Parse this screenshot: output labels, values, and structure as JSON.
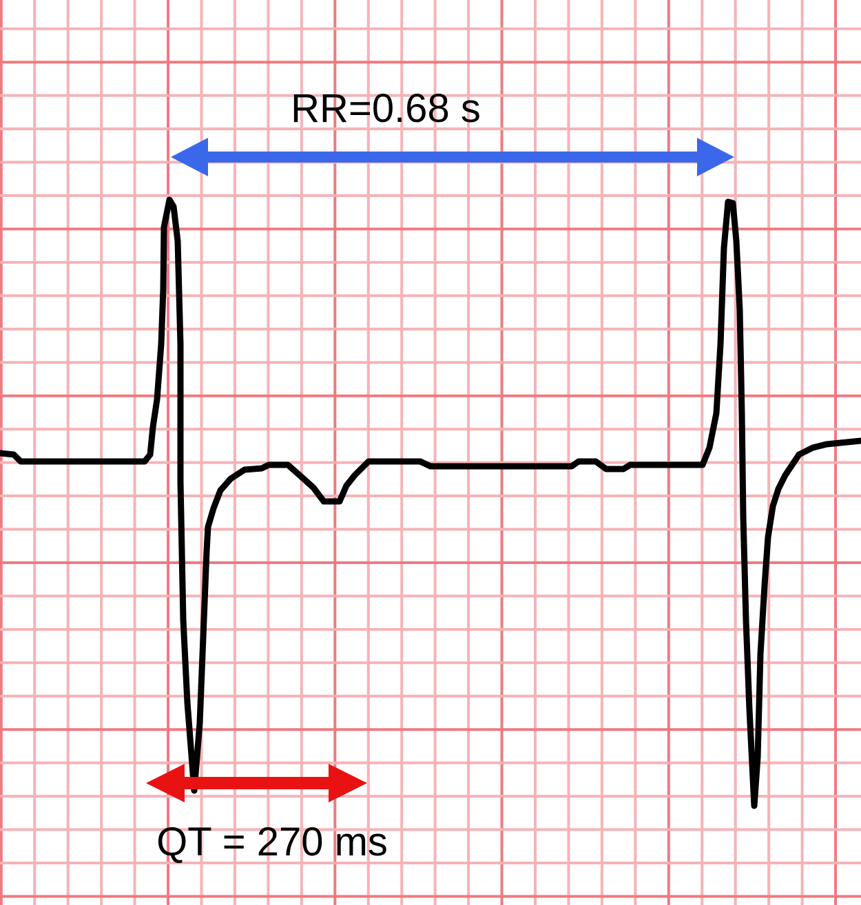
{
  "annotations": {
    "rr_label": "RR=0.68 s",
    "qt_label": "QT = 270 ms"
  },
  "colors": {
    "grid_minor": "#f6b3b6",
    "grid_major": "#f07a80",
    "trace": "#000000",
    "rr_arrow": "#3b68ea",
    "qt_arrow": "#e81212"
  }
}
